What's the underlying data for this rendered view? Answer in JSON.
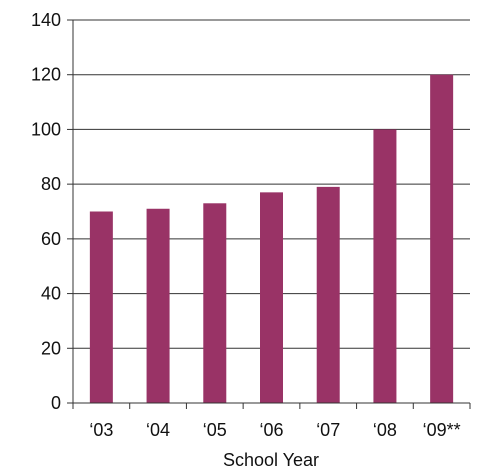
{
  "chart_data": {
    "type": "bar",
    "title": "",
    "xlabel": "School Year",
    "ylabel": "",
    "categories": [
      "‘03",
      "‘04",
      "‘05",
      "‘06",
      "‘07",
      "‘08",
      "‘09**"
    ],
    "values": [
      70,
      71,
      73,
      77,
      79,
      100,
      120
    ],
    "ylim": [
      0,
      140
    ],
    "yticks": [
      0,
      20,
      40,
      60,
      80,
      100,
      120,
      140
    ],
    "grid": true,
    "legend": "none"
  },
  "colors": {
    "bar": "#993366",
    "grid": "#333333",
    "axis": "#333333",
    "text": "#111111"
  }
}
